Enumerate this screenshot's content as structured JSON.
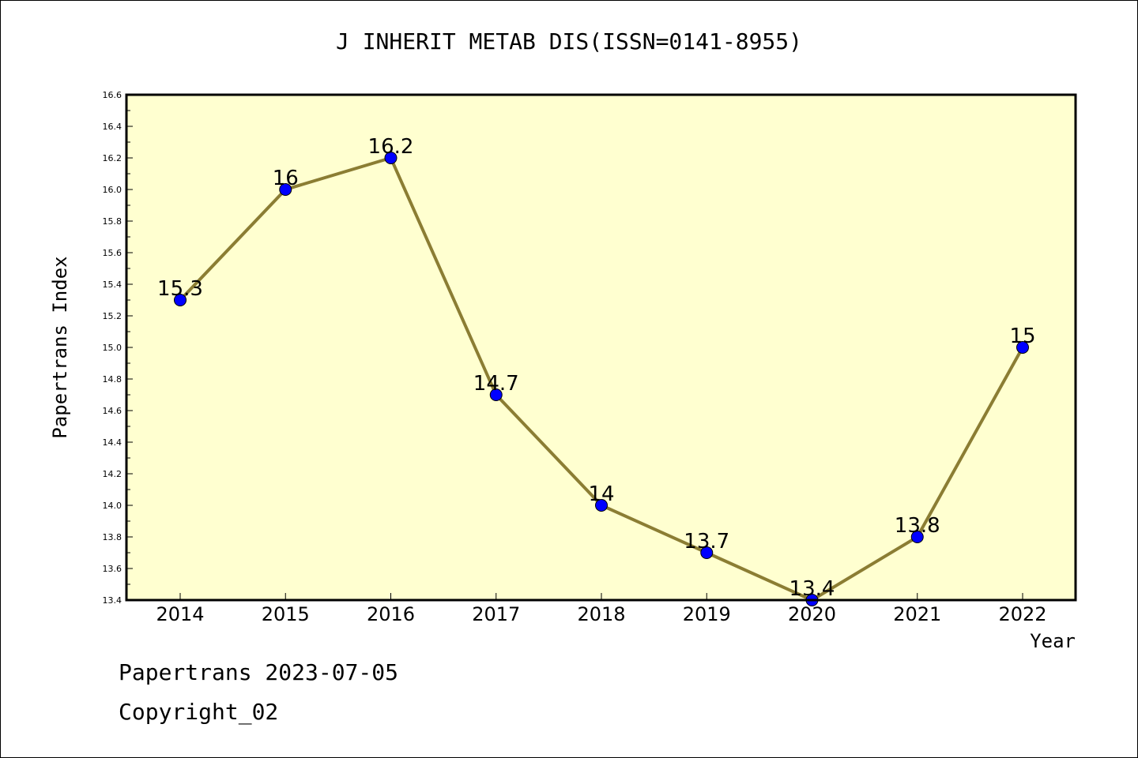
{
  "chart_data": {
    "type": "line",
    "title": "J INHERIT METAB DIS(ISSN=0141-8955)",
    "xlabel": "Year",
    "ylabel": "Papertrans Index",
    "categories": [
      "2014",
      "2015",
      "2016",
      "2017",
      "2018",
      "2019",
      "2020",
      "2021",
      "2022"
    ],
    "values": [
      15.3,
      16,
      16.2,
      14.7,
      14,
      13.7,
      13.4,
      13.8,
      15
    ],
    "data_labels": [
      "15.3",
      "16",
      "16.2",
      "14.7",
      "14",
      "13.7",
      "13.4",
      "13.8",
      "15"
    ],
    "ylim": [
      13.4,
      16.6
    ],
    "yticks": [
      "13.4",
      "13.6",
      "13.8",
      "14.0",
      "14.2",
      "14.4",
      "14.6",
      "14.8",
      "15.0",
      "15.2",
      "15.4",
      "15.6",
      "15.8",
      "16.0",
      "16.2",
      "16.4",
      "16.6"
    ],
    "grid": false,
    "colors": {
      "plot_background": "#ffffd0",
      "line": "#8b7d33",
      "marker": "#0000ff"
    }
  },
  "footer": {
    "source": "Papertrans 2023-07-05",
    "copyright": "Copyright_02"
  }
}
